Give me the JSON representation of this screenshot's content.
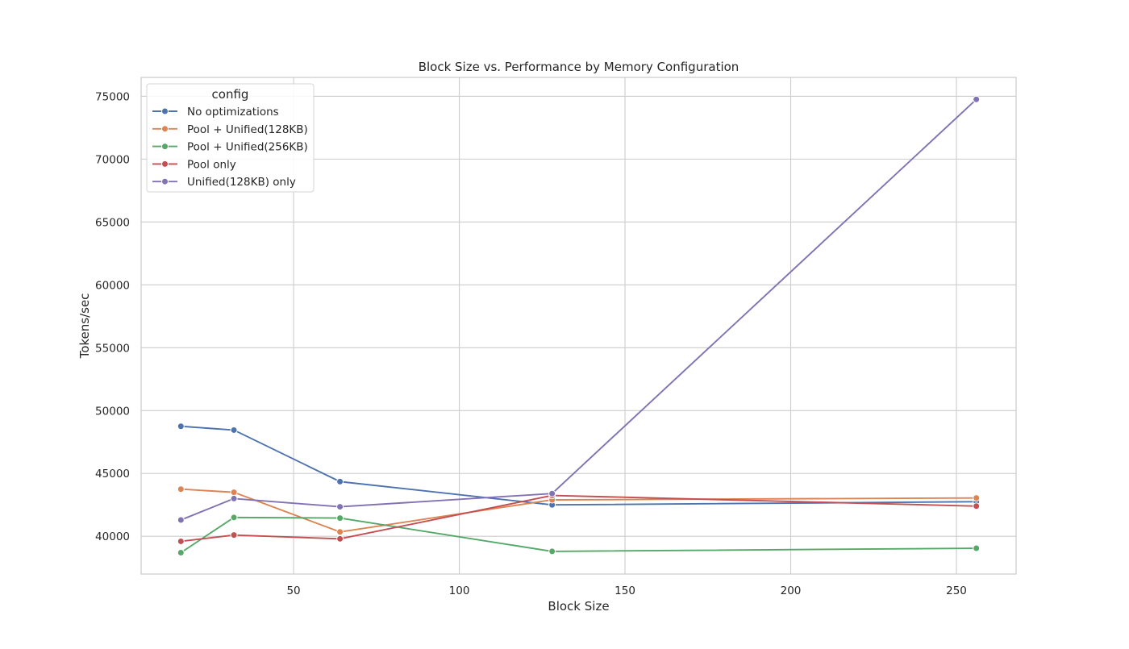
{
  "chart_data": {
    "type": "line",
    "title": "Block Size vs. Performance by Memory Configuration",
    "xlabel": "Block Size",
    "ylabel": "Tokens/sec",
    "xlim": [
      4,
      268
    ],
    "ylim": [
      37000,
      76500
    ],
    "xticks": [
      50,
      100,
      150,
      200,
      250
    ],
    "yticks": [
      40000,
      45000,
      50000,
      55000,
      60000,
      65000,
      70000,
      75000
    ],
    "grid": true,
    "legend_title": "config",
    "legend_position": "upper-left",
    "x": [
      16,
      32,
      64,
      128,
      256
    ],
    "series": [
      {
        "name": "No optimizations",
        "color": "#4c72b0",
        "values": [
          48750,
          48450,
          44350,
          42500,
          42750
        ]
      },
      {
        "name": "Pool + Unified(128KB)",
        "color": "#dd8452",
        "values": [
          43750,
          43500,
          40350,
          42900,
          43050
        ]
      },
      {
        "name": "Pool + Unified(256KB)",
        "color": "#55a868",
        "values": [
          38700,
          41500,
          41450,
          38800,
          39050
        ]
      },
      {
        "name": "Pool only",
        "color": "#c44e52",
        "values": [
          39600,
          40100,
          39800,
          43250,
          42400
        ]
      },
      {
        "name": "Unified(128KB) only",
        "color": "#8172b3",
        "values": [
          41300,
          43000,
          42350,
          43400,
          74750
        ]
      }
    ]
  }
}
